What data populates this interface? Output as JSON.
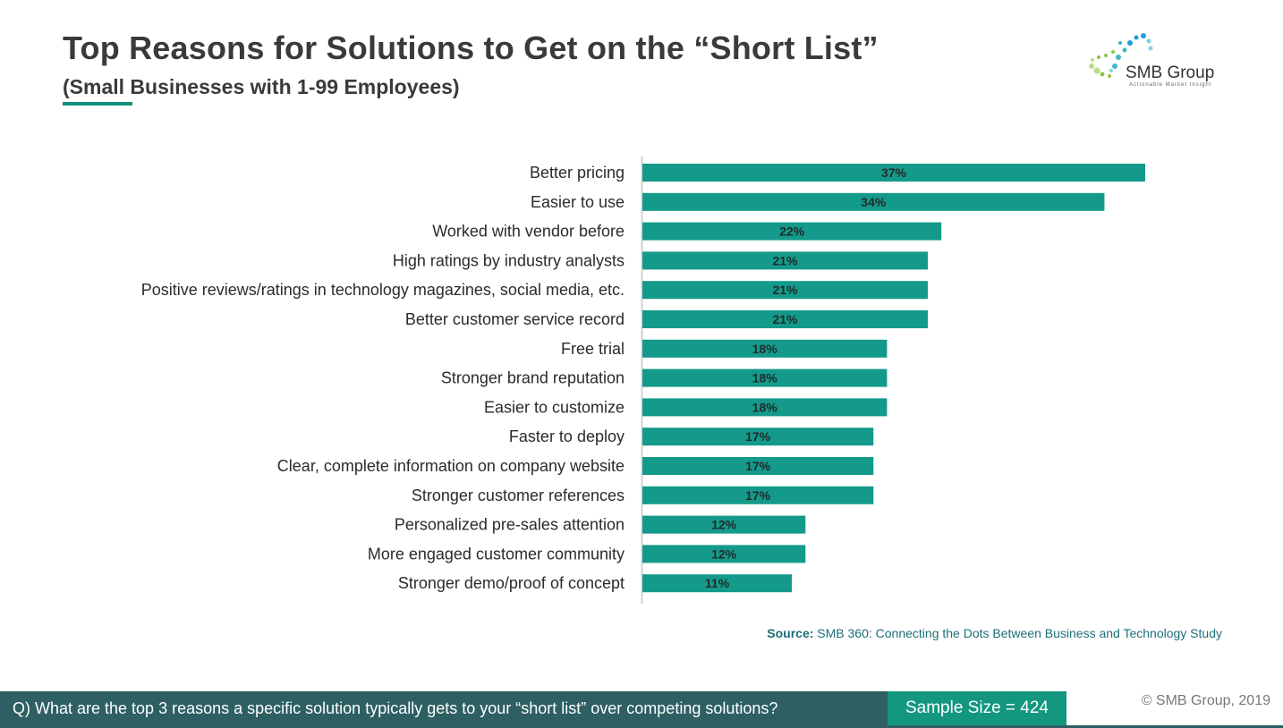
{
  "header": {
    "title": "Top Reasons for Solutions to Get on the “Short List”",
    "subtitle": "(Small Businesses with 1-99 Employees)"
  },
  "logo": {
    "name": "SMB Group",
    "tagline": "Actionable Market Insight",
    "dot_colors": [
      "#b9d98a",
      "#8cc63f",
      "#3fb8c9",
      "#1a9fd9",
      "#7fd4e6"
    ]
  },
  "chart_data": {
    "type": "bar",
    "orientation": "horizontal",
    "categories": [
      "Better pricing",
      "Easier to use",
      "Worked with vendor before",
      "High ratings by industry analysts",
      "Positive reviews/ratings in technology magazines, social media, etc.",
      "Better customer service record",
      "Free trial",
      "Stronger brand reputation",
      "Easier to customize",
      "Faster to deploy",
      "Clear, complete information on company website",
      "Stronger customer references",
      "Personalized pre-sales attention",
      "More engaged customer community",
      "Stronger demo/proof of concept"
    ],
    "values": [
      37,
      34,
      22,
      21,
      21,
      21,
      18,
      18,
      18,
      17,
      17,
      17,
      12,
      12,
      11
    ],
    "labels": [
      "37%",
      "34%",
      "22%",
      "21%",
      "21%",
      "21%",
      "18%",
      "18%",
      "18%",
      "17%",
      "17%",
      "17%",
      "12%",
      "12%",
      "11%"
    ],
    "xlim": [
      0,
      37
    ],
    "grid": false,
    "legend": "none",
    "bar_color": "#139a8a"
  },
  "source": {
    "label": "Source:",
    "text": "SMB 360: Connecting the Dots Between Business and Technology Study"
  },
  "footer": {
    "question": "Q) What are the top 3 reasons a specific solution typically gets to your “short list” over competing solutions?",
    "sample_size": "Sample Size = 424",
    "copyright": "© SMB Group, 2019"
  }
}
